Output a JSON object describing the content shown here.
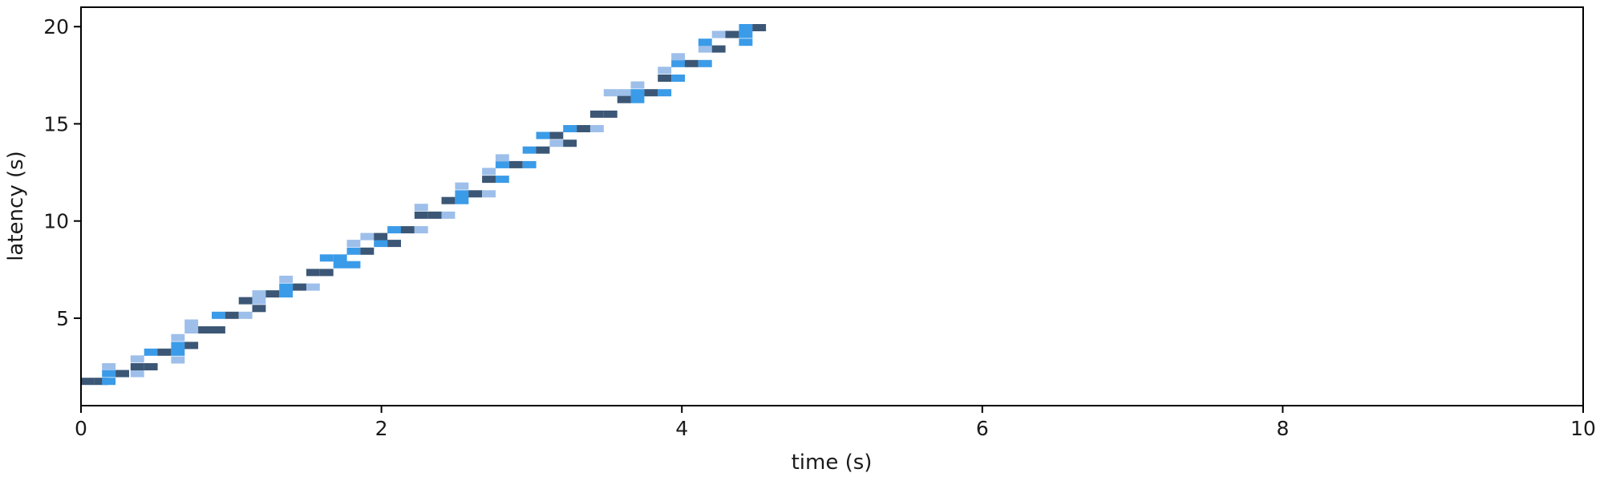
{
  "chart_data": {
    "type": "heatmap",
    "title": "",
    "xlabel": "time (s)",
    "ylabel": "latency (s)",
    "xlim": [
      0,
      10
    ],
    "ylim": [
      0.5,
      21
    ],
    "xticks": [
      0,
      2,
      4,
      6,
      8,
      10
    ],
    "yticks": [
      5,
      10,
      15,
      20
    ],
    "grid": false,
    "legend": "none",
    "bin_width": {
      "x": 0.09,
      "y": 0.37
    },
    "colors": {
      "light": "#9dbfea",
      "medium": "#3a9be8",
      "dark": "#3c5776"
    },
    "cells": [
      {
        "x": 0.0,
        "y": 1.75,
        "level": "dark"
      },
      {
        "x": 0.09,
        "y": 1.75,
        "level": "dark"
      },
      {
        "x": 0.14,
        "y": 1.75,
        "level": "medium"
      },
      {
        "x": 0.14,
        "y": 2.15,
        "level": "medium"
      },
      {
        "x": 0.14,
        "y": 2.5,
        "level": "light"
      },
      {
        "x": 0.23,
        "y": 2.15,
        "level": "dark"
      },
      {
        "x": 0.33,
        "y": 2.15,
        "level": "light"
      },
      {
        "x": 0.33,
        "y": 2.5,
        "level": "dark"
      },
      {
        "x": 0.33,
        "y": 2.9,
        "level": "light"
      },
      {
        "x": 0.42,
        "y": 2.5,
        "level": "dark"
      },
      {
        "x": 0.42,
        "y": 3.25,
        "level": "medium"
      },
      {
        "x": 0.51,
        "y": 3.25,
        "level": "dark"
      },
      {
        "x": 0.6,
        "y": 2.85,
        "level": "light"
      },
      {
        "x": 0.6,
        "y": 3.25,
        "level": "medium"
      },
      {
        "x": 0.6,
        "y": 3.6,
        "level": "medium"
      },
      {
        "x": 0.6,
        "y": 4.0,
        "level": "light"
      },
      {
        "x": 0.69,
        "y": 3.6,
        "level": "dark"
      },
      {
        "x": 0.69,
        "y": 4.4,
        "level": "light"
      },
      {
        "x": 0.69,
        "y": 4.75,
        "level": "light"
      },
      {
        "x": 0.78,
        "y": 4.4,
        "level": "dark"
      },
      {
        "x": 0.87,
        "y": 4.4,
        "level": "dark"
      },
      {
        "x": 0.87,
        "y": 5.15,
        "level": "medium"
      },
      {
        "x": 0.96,
        "y": 5.15,
        "level": "dark"
      },
      {
        "x": 1.05,
        "y": 5.15,
        "level": "light"
      },
      {
        "x": 1.05,
        "y": 5.9,
        "level": "dark"
      },
      {
        "x": 1.14,
        "y": 5.5,
        "level": "dark"
      },
      {
        "x": 1.14,
        "y": 5.9,
        "level": "light"
      },
      {
        "x": 1.14,
        "y": 6.25,
        "level": "light"
      },
      {
        "x": 1.23,
        "y": 6.25,
        "level": "dark"
      },
      {
        "x": 1.32,
        "y": 6.25,
        "level": "medium"
      },
      {
        "x": 1.32,
        "y": 6.6,
        "level": "medium"
      },
      {
        "x": 1.32,
        "y": 7.0,
        "level": "light"
      },
      {
        "x": 1.41,
        "y": 6.6,
        "level": "dark"
      },
      {
        "x": 1.5,
        "y": 6.6,
        "level": "light"
      },
      {
        "x": 1.5,
        "y": 7.35,
        "level": "dark"
      },
      {
        "x": 1.59,
        "y": 7.35,
        "level": "dark"
      },
      {
        "x": 1.59,
        "y": 8.1,
        "level": "medium"
      },
      {
        "x": 1.68,
        "y": 7.75,
        "level": "medium"
      },
      {
        "x": 1.68,
        "y": 8.1,
        "level": "medium"
      },
      {
        "x": 1.77,
        "y": 7.75,
        "level": "medium"
      },
      {
        "x": 1.77,
        "y": 8.45,
        "level": "medium"
      },
      {
        "x": 1.77,
        "y": 8.85,
        "level": "light"
      },
      {
        "x": 1.86,
        "y": 8.45,
        "level": "dark"
      },
      {
        "x": 1.86,
        "y": 9.2,
        "level": "light"
      },
      {
        "x": 1.95,
        "y": 8.85,
        "level": "medium"
      },
      {
        "x": 1.95,
        "y": 9.2,
        "level": "dark"
      },
      {
        "x": 2.04,
        "y": 8.85,
        "level": "dark"
      },
      {
        "x": 2.04,
        "y": 9.55,
        "level": "medium"
      },
      {
        "x": 2.13,
        "y": 9.55,
        "level": "dark"
      },
      {
        "x": 2.22,
        "y": 9.55,
        "level": "light"
      },
      {
        "x": 2.22,
        "y": 10.3,
        "level": "dark"
      },
      {
        "x": 2.22,
        "y": 10.7,
        "level": "light"
      },
      {
        "x": 2.31,
        "y": 10.3,
        "level": "dark"
      },
      {
        "x": 2.4,
        "y": 10.3,
        "level": "light"
      },
      {
        "x": 2.4,
        "y": 11.05,
        "level": "dark"
      },
      {
        "x": 2.49,
        "y": 11.05,
        "level": "medium"
      },
      {
        "x": 2.49,
        "y": 11.4,
        "level": "medium"
      },
      {
        "x": 2.49,
        "y": 11.8,
        "level": "light"
      },
      {
        "x": 2.58,
        "y": 11.4,
        "level": "dark"
      },
      {
        "x": 2.67,
        "y": 11.4,
        "level": "light"
      },
      {
        "x": 2.67,
        "y": 12.15,
        "level": "dark"
      },
      {
        "x": 2.67,
        "y": 12.55,
        "level": "light"
      },
      {
        "x": 2.76,
        "y": 12.15,
        "level": "medium"
      },
      {
        "x": 2.76,
        "y": 12.9,
        "level": "medium"
      },
      {
        "x": 2.76,
        "y": 13.25,
        "level": "light"
      },
      {
        "x": 2.85,
        "y": 12.9,
        "level": "dark"
      },
      {
        "x": 2.94,
        "y": 12.9,
        "level": "medium"
      },
      {
        "x": 2.94,
        "y": 13.65,
        "level": "medium"
      },
      {
        "x": 3.03,
        "y": 13.65,
        "level": "dark"
      },
      {
        "x": 3.03,
        "y": 14.4,
        "level": "medium"
      },
      {
        "x": 3.12,
        "y": 14.0,
        "level": "light"
      },
      {
        "x": 3.12,
        "y": 14.4,
        "level": "dark"
      },
      {
        "x": 3.21,
        "y": 14.0,
        "level": "dark"
      },
      {
        "x": 3.21,
        "y": 14.75,
        "level": "medium"
      },
      {
        "x": 3.3,
        "y": 14.75,
        "level": "dark"
      },
      {
        "x": 3.39,
        "y": 14.75,
        "level": "light"
      },
      {
        "x": 3.39,
        "y": 15.5,
        "level": "dark"
      },
      {
        "x": 3.48,
        "y": 15.5,
        "level": "dark"
      },
      {
        "x": 3.48,
        "y": 16.6,
        "level": "light"
      },
      {
        "x": 3.57,
        "y": 16.6,
        "level": "light"
      },
      {
        "x": 3.57,
        "y": 16.25,
        "level": "dark"
      },
      {
        "x": 3.66,
        "y": 16.25,
        "level": "medium"
      },
      {
        "x": 3.66,
        "y": 16.6,
        "level": "medium"
      },
      {
        "x": 3.66,
        "y": 17.0,
        "level": "light"
      },
      {
        "x": 3.75,
        "y": 16.6,
        "level": "dark"
      },
      {
        "x": 3.84,
        "y": 16.6,
        "level": "medium"
      },
      {
        "x": 3.84,
        "y": 17.35,
        "level": "dark"
      },
      {
        "x": 3.84,
        "y": 17.75,
        "level": "light"
      },
      {
        "x": 3.93,
        "y": 17.35,
        "level": "medium"
      },
      {
        "x": 3.93,
        "y": 18.1,
        "level": "medium"
      },
      {
        "x": 3.93,
        "y": 18.45,
        "level": "light"
      },
      {
        "x": 4.02,
        "y": 18.1,
        "level": "dark"
      },
      {
        "x": 4.11,
        "y": 18.1,
        "level": "medium"
      },
      {
        "x": 4.11,
        "y": 18.85,
        "level": "light"
      },
      {
        "x": 4.11,
        "y": 19.2,
        "level": "medium"
      },
      {
        "x": 4.2,
        "y": 18.85,
        "level": "dark"
      },
      {
        "x": 4.2,
        "y": 19.6,
        "level": "light"
      },
      {
        "x": 4.29,
        "y": 19.6,
        "level": "dark"
      },
      {
        "x": 4.38,
        "y": 19.2,
        "level": "medium"
      },
      {
        "x": 4.38,
        "y": 19.6,
        "level": "medium"
      },
      {
        "x": 4.38,
        "y": 19.95,
        "level": "medium"
      },
      {
        "x": 4.47,
        "y": 19.95,
        "level": "dark"
      }
    ]
  }
}
